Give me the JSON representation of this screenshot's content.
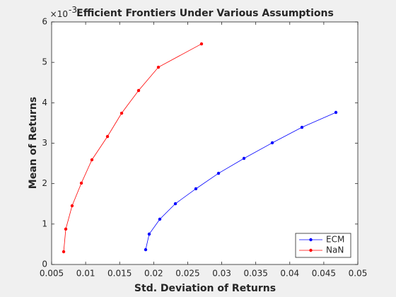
{
  "chart_data": {
    "type": "line",
    "title": "Efficient Frontiers Under Various Assumptions",
    "x_label": "Std. Deviation of Returns",
    "y_label": "Mean of Returns",
    "y_multiplier": "×10",
    "y_multiplier_exponent": "-3",
    "xlim": [
      0.005,
      0.05
    ],
    "xticks": [
      0.005,
      0.01,
      0.015,
      0.02,
      0.025,
      0.03,
      0.035,
      0.04,
      0.045,
      0.05
    ],
    "ylim": [
      0,
      6
    ],
    "yticks": [
      0,
      1,
      2,
      3,
      4,
      5,
      6
    ],
    "legend_position": "southeast",
    "series": [
      {
        "name": "ECM",
        "color": "#0000ff",
        "x": [
          0.01882,
          0.01934,
          0.0209,
          0.02319,
          0.0262,
          0.02953,
          0.03327,
          0.03743,
          0.04179,
          0.04678
        ],
        "values": [
          0.367,
          0.752,
          1.12,
          1.504,
          1.872,
          2.256,
          2.624,
          3.009,
          3.393,
          3.761
        ]
      },
      {
        "name": "NaN",
        "color": "#ff0000",
        "x": [
          0.00677,
          0.00708,
          0.00801,
          0.00937,
          0.01092,
          0.01321,
          0.01529,
          0.01778,
          0.02069,
          0.02703
        ],
        "values": [
          0.315,
          0.875,
          1.452,
          2.012,
          2.589,
          3.166,
          3.743,
          4.303,
          4.88,
          5.457
        ]
      }
    ]
  }
}
